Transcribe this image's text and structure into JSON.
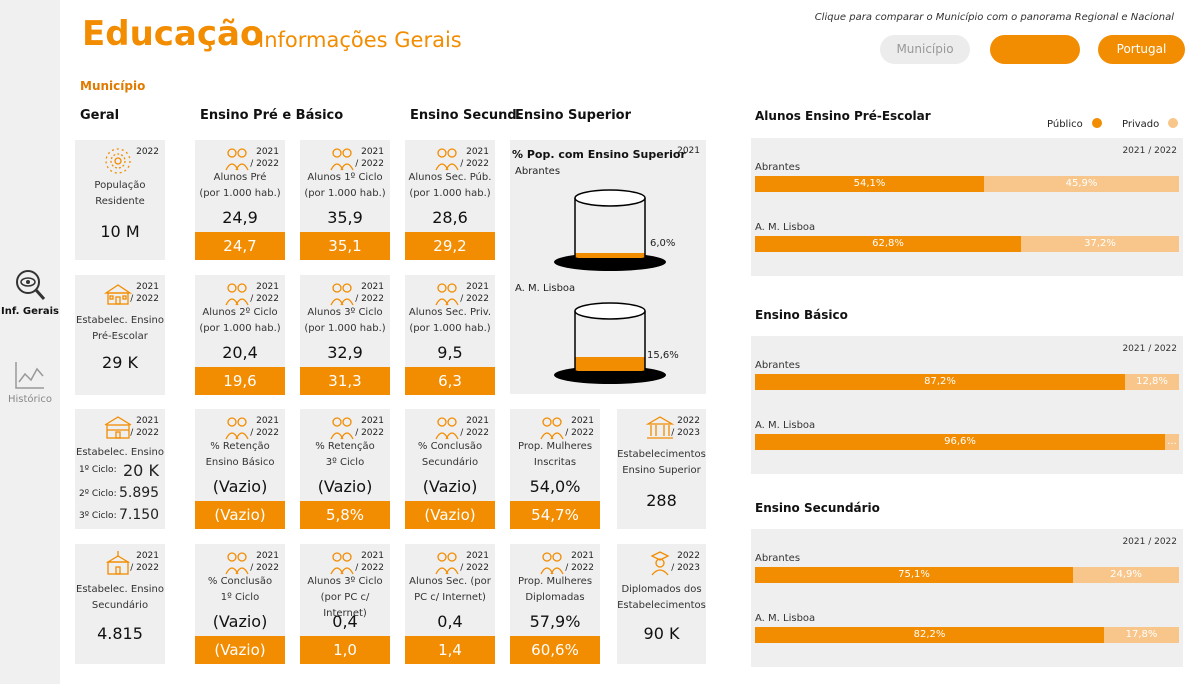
{
  "colors": {
    "accent": "#f28c00",
    "light": "#f8c68a",
    "card": "#efefef"
  },
  "sidebar": {
    "items": [
      {
        "label": "Inf. Gerais",
        "icon": "eye-magnifier-icon"
      },
      {
        "label": "Histórico",
        "icon": "line-chart-icon"
      }
    ]
  },
  "header": {
    "title": "Educação",
    "subtitle": "Informações Gerais",
    "hint": "Clique para comparar o Município com o panorama Regional e Nacional",
    "buttons": {
      "municipio": "Município",
      "regional": "",
      "portugal": "Portugal"
    }
  },
  "section_label": "Município",
  "columns": {
    "geral": "Geral",
    "pre_basico": "Ensino Pré e Básico",
    "secund": "Ensino Secund.",
    "superior": "Ensino Superior"
  },
  "cards": {
    "populacao": {
      "year": "2022",
      "label1": "População",
      "label2": "Residente",
      "value": "10 M",
      "icon": "crowd-icon"
    },
    "estab_pre": {
      "year": "2021\n/ 2022",
      "label1": "Estabelec. Ensino",
      "label2": "Pré-Escolar",
      "value": "29 K",
      "icon": "school-building-icon"
    },
    "estab_basico": {
      "year": "2021\n/ 2022",
      "label1": "Estabelec. Ensino",
      "c1": "1º Ciclo:",
      "v1": "20 K",
      "c2": "2º Ciclo:",
      "v2": "5.895",
      "c3": "3º Ciclo:",
      "v3": "7.150",
      "icon": "school-icon"
    },
    "estab_sec": {
      "year": "2021\n/ 2022",
      "label1": "Estabelec. Ensino",
      "label2": "Secundário",
      "value": "4.815",
      "icon": "school-bell-icon"
    },
    "alunos_pre": {
      "year": "2021\n/ 2022",
      "label1": "Alunos Pré",
      "label2": "(por 1.000 hab.)",
      "value": "24,9",
      "bar": "24,7",
      "icon": "child-balloon-icon"
    },
    "alunos_1c": {
      "year": "2021\n/ 2022",
      "label1": "Alunos 1º Ciclo",
      "label2": "(por 1.000 hab.)",
      "value": "35,9",
      "bar": "35,1",
      "icon": "children-icon"
    },
    "alunos_2c": {
      "year": "2021\n/ 2022",
      "label1": "Alunos 2º Ciclo",
      "label2": "(por 1.000 hab.)",
      "value": "20,4",
      "bar": "19,6",
      "icon": "students-icon"
    },
    "alunos_3c": {
      "year": "2021\n/ 2022",
      "label1": "Alunos 3º Ciclo",
      "label2": "(por 1.000 hab.)",
      "value": "32,9",
      "bar": "31,3",
      "icon": "classroom-icon"
    },
    "ret_basico": {
      "year": "2021\n/ 2022",
      "label1": "% Retenção",
      "label2": "Ensino Básico",
      "value": "(Vazio)",
      "bar": "(Vazio)",
      "icon": "hierarchy-icon"
    },
    "ret_3c": {
      "year": "2021\n/ 2022",
      "label1": "% Retenção",
      "label2": "3º Ciclo",
      "value": "(Vazio)",
      "bar": "5,8%",
      "icon": "teacher-board-icon"
    },
    "concl_1c": {
      "year": "2021\n/ 2022",
      "label1": "% Conclusão",
      "label2": "1º Ciclo",
      "value": "(Vazio)",
      "bar": "(Vazio)",
      "icon": "group-icon"
    },
    "alunos_3c_pc": {
      "year": "2021\n/ 2022",
      "label1": "Alunos 3º Ciclo",
      "label2": "(por PC c/ Internet)",
      "value": "0,4",
      "bar": "1,0",
      "icon": "student-laptop-icon"
    },
    "sec_pub": {
      "year": "2021\n/ 2022",
      "label1": "Alunos Sec. Púb.",
      "label2": "(por 1.000 hab.)",
      "value": "28,6",
      "bar": "29,2",
      "icon": "teens-icon"
    },
    "sec_priv": {
      "year": "2021\n/ 2022",
      "label1": "Alunos Sec. Priv.",
      "label2": "(por 1.000 hab.)",
      "value": "9,5",
      "bar": "6,3",
      "icon": "teens-pair-icon"
    },
    "concl_sec": {
      "year": "2021\n/ 2022",
      "label1": "% Conclusão",
      "label2": "Secundário",
      "value": "(Vazio)",
      "bar": "(Vazio)",
      "icon": "graduation-cap-icon"
    },
    "sec_pc": {
      "year": "2021\n/ 2022",
      "label1": "Alunos Sec. (por",
      "label2": "PC c/ Internet)",
      "value": "0,4",
      "bar": "1,4",
      "icon": "laptop-graduate-icon"
    },
    "mulheres_insc": {
      "year": "2021\n/ 2022",
      "label1": "Prop. Mulheres",
      "label2": "Inscritas",
      "value": "54,0%",
      "bar": "54,7%",
      "icon": "woman-book-icon"
    },
    "mulheres_dipl": {
      "year": "2021\n/ 2022",
      "label1": "Prop. Mulheres",
      "label2": "Diplomadas",
      "value": "57,9%",
      "bar": "60,6%",
      "icon": "woman-graduate-icon"
    },
    "estab_sup": {
      "year": "2022\n/ 2023",
      "label1": "Estabelecimentos",
      "label2": "Ensino Superior",
      "value": "288",
      "icon": "university-icon"
    },
    "diplomados": {
      "year": "2022\n/ 2023",
      "label1": "Diplomados dos",
      "label2": "Estabelecimentos",
      "value": "90 K",
      "icon": "graduate-icon"
    }
  },
  "superior": {
    "title": "% Pop. com Ensino Superior",
    "year": "2021",
    "items": [
      {
        "label": "Abrantes",
        "value": "6,0%",
        "fraction": 0.06
      },
      {
        "label": "A. M. Lisboa",
        "value": "15,6%",
        "fraction": 0.156
      }
    ]
  },
  "legend": {
    "publico": "Público",
    "privado": "Privado"
  },
  "panels": [
    {
      "title": "Alunos Ensino Pré-Escolar",
      "year": "2021 / 2022",
      "rows": [
        {
          "label": "Abrantes",
          "pub": 54.1,
          "pub_label": "54,1%",
          "priv_label": "45,9%"
        },
        {
          "label": "A. M. Lisboa",
          "pub": 62.8,
          "pub_label": "62,8%",
          "priv_label": "37,2%"
        }
      ]
    },
    {
      "title": "Ensino Básico",
      "year": "2021 / 2022",
      "rows": [
        {
          "label": "Abrantes",
          "pub": 87.2,
          "pub_label": "87,2%",
          "priv_label": "12,8%"
        },
        {
          "label": "A. M. Lisboa",
          "pub": 96.6,
          "pub_label": "96,6%",
          "priv_label": "..."
        }
      ]
    },
    {
      "title": "Ensino Secundário",
      "year": "2021 / 2022",
      "rows": [
        {
          "label": "Abrantes",
          "pub": 75.1,
          "pub_label": "75,1%",
          "priv_label": "24,9%"
        },
        {
          "label": "A. M. Lisboa",
          "pub": 82.2,
          "pub_label": "82,2%",
          "priv_label": "17,8%"
        }
      ]
    }
  ]
}
